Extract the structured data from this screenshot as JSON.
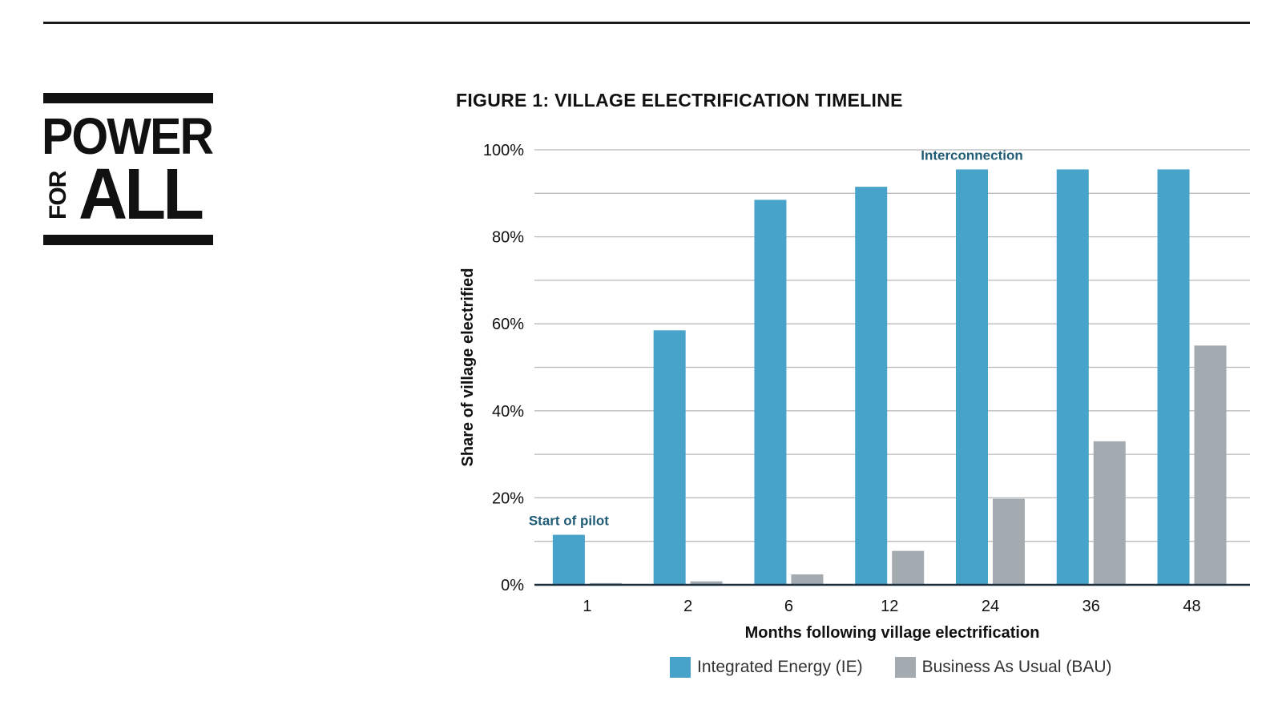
{
  "logo": {
    "line1": "POWER",
    "line2_small": "FOR",
    "line2_big": "ALL"
  },
  "figure_title": "FIGURE 1: VILLAGE ELECTRIFICATION TIMELINE",
  "colors": {
    "ie": "#47a3ca",
    "bau": "#a3abb1",
    "annotation": "#1f5b74",
    "grid": "#b9b9b9",
    "axis": "#1b2f3f"
  },
  "chart_data": {
    "type": "bar",
    "title": "FIGURE 1: VILLAGE ELECTRIFICATION TIMELINE",
    "xlabel": "Months following village electrification",
    "ylabel": "Share of village electrified",
    "categories": [
      "1",
      "2",
      "6",
      "12",
      "24",
      "36",
      "48"
    ],
    "series": [
      {
        "name": "Integrated Energy (IE)",
        "values": [
          11.5,
          58.5,
          88.5,
          91.5,
          95.5,
          95.5,
          95.5
        ]
      },
      {
        "name": "Business As Usual (BAU)",
        "values": [
          0.4,
          0.8,
          2.4,
          7.8,
          19.8,
          33,
          55
        ]
      }
    ],
    "ylim": [
      0,
      100
    ],
    "yticks": [
      "0%",
      "20%",
      "40%",
      "60%",
      "80%",
      "100%"
    ],
    "grid": true,
    "legend_position": "bottom",
    "annotations": [
      {
        "text": "Start of pilot",
        "category": "1"
      },
      {
        "text": "Interconnection",
        "category": "24"
      }
    ]
  }
}
